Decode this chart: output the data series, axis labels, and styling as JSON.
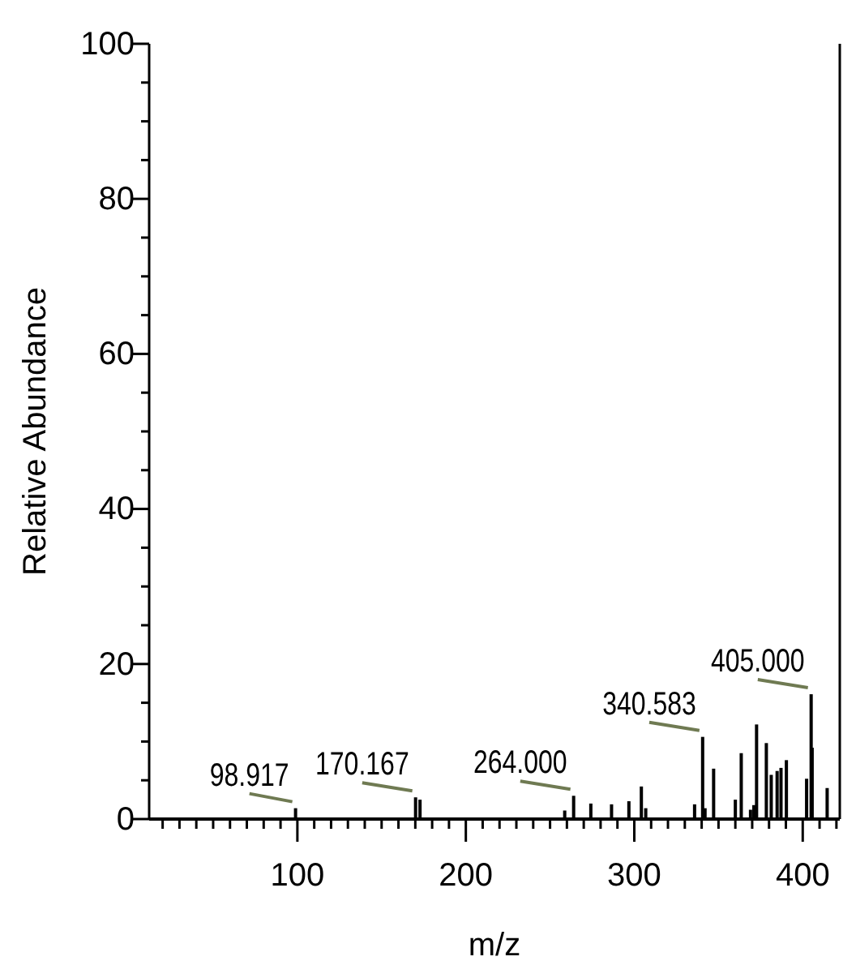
{
  "chart_data": {
    "type": "bar",
    "xlabel": "m/z",
    "ylabel": "Relative Abundance",
    "x": [
      98.917,
      170.167,
      172.8,
      258.7,
      264.0,
      274.2,
      286.5,
      296.8,
      304.2,
      306.8,
      335.8,
      340.583,
      342.0,
      347.1,
      360.0,
      363.5,
      369.0,
      371.0,
      372.6,
      378.4,
      381.3,
      384.8,
      387.1,
      390.3,
      402.3,
      405.0,
      405.6,
      414.5
    ],
    "values": [
      1.4,
      2.8,
      2.5,
      1.1,
      3.0,
      2.0,
      1.9,
      2.3,
      4.2,
      1.4,
      1.9,
      10.6,
      1.4,
      6.5,
      2.5,
      8.5,
      1.2,
      1.8,
      12.2,
      9.8,
      5.7,
      6.2,
      6.6,
      7.6,
      5.2,
      16.1,
      9.2,
      4.0
    ],
    "color": "#000000",
    "xlim": [
      12,
      422
    ],
    "xticks": [
      {
        "value": 20,
        "label": null
      },
      {
        "value": 30,
        "label": null
      },
      {
        "value": 40,
        "label": null
      },
      {
        "value": 50,
        "label": null
      },
      {
        "value": 60,
        "label": null
      },
      {
        "value": 70,
        "label": null
      },
      {
        "value": 80,
        "label": null
      },
      {
        "value": 90,
        "label": null
      },
      100,
      {
        "value": 110,
        "label": null
      },
      {
        "value": 120,
        "label": null
      },
      {
        "value": 130,
        "label": null
      },
      {
        "value": 140,
        "label": null
      },
      {
        "value": 150,
        "label": null
      },
      {
        "value": 160,
        "label": null
      },
      {
        "value": 170,
        "label": null
      },
      {
        "value": 180,
        "label": null
      },
      {
        "value": 190,
        "label": null
      },
      200,
      {
        "value": 210,
        "label": null
      },
      {
        "value": 220,
        "label": null
      },
      {
        "value": 230,
        "label": null
      },
      {
        "value": 240,
        "label": null
      },
      {
        "value": 250,
        "label": null
      },
      {
        "value": 260,
        "label": null
      },
      {
        "value": 270,
        "label": null
      },
      {
        "value": 280,
        "label": null
      },
      {
        "value": 290,
        "label": null
      },
      300,
      {
        "value": 310,
        "label": null
      },
      {
        "value": 320,
        "label": null
      },
      {
        "value": 330,
        "label": null
      },
      {
        "value": 340,
        "label": null
      },
      {
        "value": 350,
        "label": null
      },
      {
        "value": 360,
        "label": null
      },
      {
        "value": 370,
        "label": null
      },
      {
        "value": 380,
        "label": null
      },
      {
        "value": 390,
        "label": null
      },
      400,
      {
        "value": 410,
        "label": null
      },
      {
        "value": 420,
        "label": null
      }
    ],
    "ylim": [
      0,
      100
    ],
    "yticks": [
      0,
      {
        "value": 5,
        "label": null
      },
      {
        "value": 10,
        "label": null
      },
      {
        "value": 15,
        "label": null
      },
      20,
      {
        "value": 25,
        "label": null
      },
      {
        "value": 30,
        "label": null
      },
      {
        "value": 35,
        "label": null
      },
      40,
      {
        "value": 45,
        "label": null
      },
      {
        "value": 50,
        "label": null
      },
      {
        "value": 55,
        "label": null
      },
      60,
      {
        "value": 65,
        "label": null
      },
      {
        "value": 70,
        "label": null
      },
      {
        "value": 75,
        "label": null
      },
      80,
      {
        "value": 85,
        "label": null
      },
      {
        "value": 90,
        "label": null
      },
      {
        "value": 95,
        "label": null
      },
      100
    ],
    "annotations": [
      {
        "text": "98.917",
        "x": 98.917,
        "y": 1.4
      },
      {
        "text": "170.167",
        "x": 170.167,
        "y": 2.8
      },
      {
        "text": "264.000",
        "x": 264.0,
        "y": 3.0
      },
      {
        "text": "340.583",
        "x": 340.583,
        "y": 10.6
      },
      {
        "text": "405.000",
        "x": 405.0,
        "y": 16.1
      }
    ],
    "grid": false
  }
}
